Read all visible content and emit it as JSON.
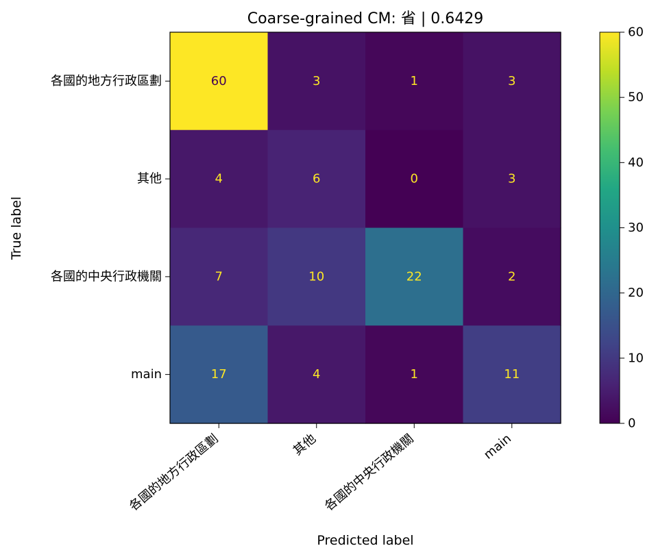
{
  "chart_data": {
    "type": "heatmap",
    "title": "Coarse-grained CM: 省 | 0.6429",
    "xlabel": "Predicted label",
    "ylabel": "True label",
    "x_categories": [
      "各國的地方行政區劃",
      "其他",
      "各國的中央行政機關",
      "main"
    ],
    "y_categories": [
      "各國的地方行政區劃",
      "其他",
      "各國的中央行政機關",
      "main"
    ],
    "values": [
      [
        60,
        3,
        1,
        3
      ],
      [
        4,
        6,
        0,
        3
      ],
      [
        7,
        10,
        22,
        2
      ],
      [
        17,
        4,
        1,
        11
      ]
    ],
    "colorbar": {
      "min": 0,
      "max": 60,
      "ticks": [
        "0",
        "10",
        "20",
        "30",
        "40",
        "50",
        "60"
      ],
      "colormap": "viridis"
    },
    "text_colors": {
      "on_dark": "#fde725",
      "on_light": "#440154"
    }
  }
}
